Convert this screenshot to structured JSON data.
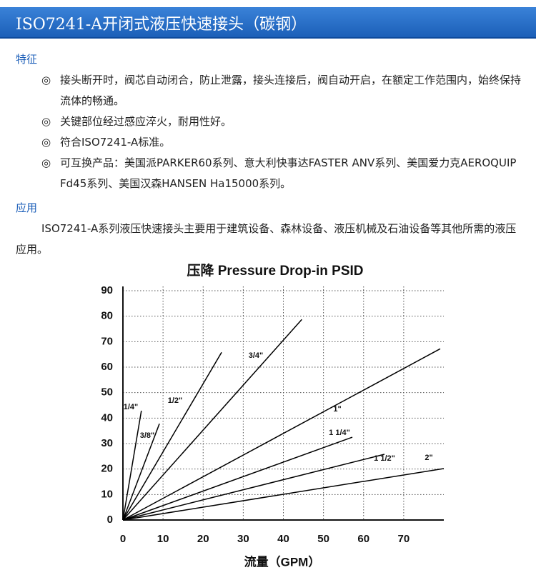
{
  "header": {
    "title": "ISO7241-A开闭式液压快速接头（碳钢）"
  },
  "features": {
    "heading": "特征",
    "marker": "◎",
    "items": [
      "接头断开时，阀芯自动闭合，防止泄露，接头连接后，阀自动开启，在额定工作范围内，始终保持流体的畅通。",
      "关键部位经过感应淬火，耐用性好。",
      "符合ISO7241-A标准。",
      "可互换产品：美国派PARKER60系列、意大利快事达FASTER ANV系列、美国爱力克AEROQUIP Fd45系列、美国汉森HANSEN Ha15000系列。"
    ]
  },
  "application": {
    "heading": "应用",
    "text": "ISO7241-A系列液压快速接头主要用于建筑设备、森林设备、液压机械及石油设备等其他所需的液压应用。"
  },
  "chart_data": {
    "type": "line",
    "title": "压降 Pressure Drop-in PSID",
    "x_label": "流量（GPM）",
    "xlim": [
      0,
      80
    ],
    "ylim": [
      0,
      90
    ],
    "xticks": [
      0,
      10,
      20,
      30,
      40,
      50,
      60,
      70
    ],
    "yticks": [
      0,
      10,
      20,
      30,
      40,
      50,
      60,
      70,
      80,
      90
    ],
    "grid": true,
    "series": [
      {
        "name": "1/4\"",
        "color": "#000000",
        "x": [
          0,
          4.6
        ],
        "values": [
          0,
          42.9
        ]
      },
      {
        "name": "3/8\"",
        "color": "#000000",
        "x": [
          0,
          9.1
        ],
        "values": [
          0,
          37.8
        ]
      },
      {
        "name": "1/2\"",
        "color": "#000000",
        "x": [
          0,
          24.6
        ],
        "values": [
          0,
          65.8
        ]
      },
      {
        "name": "3/4\"",
        "color": "#000000",
        "x": [
          0,
          44.6
        ],
        "values": [
          0,
          78.7
        ]
      },
      {
        "name": "1\"",
        "color": "#000000",
        "x": [
          0,
          79.1
        ],
        "values": [
          0,
          67.2
        ]
      },
      {
        "name": "1 1/4\"",
        "color": "#000000",
        "x": [
          0,
          57.2
        ],
        "values": [
          0,
          32.5
        ]
      },
      {
        "name": "1 1/2\"",
        "color": "#000000",
        "x": [
          0,
          65.2
        ],
        "values": [
          0,
          25.8
        ]
      },
      {
        "name": "2\"",
        "color": "#000000",
        "x": [
          0,
          80
        ],
        "values": [
          0,
          20.2
        ]
      }
    ]
  }
}
